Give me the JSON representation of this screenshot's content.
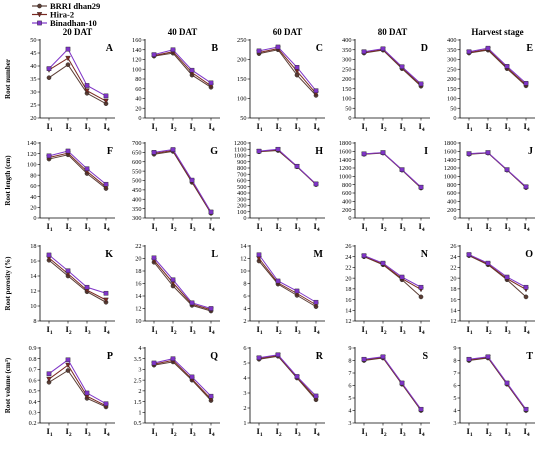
{
  "figure": {
    "column_headers": [
      "20 DAT",
      "40 DAT",
      "60 DAT",
      "80 DAT",
      "Harvest stage"
    ],
    "row_ylabels": [
      "Root number",
      "Root length (cm)",
      "Root porosity (%)",
      "Root volume (cm³)"
    ],
    "legend": [
      {
        "label": "BRRI dhan29",
        "color": "#5a3d34",
        "marker": "circle"
      },
      {
        "label": "Hira-2",
        "color": "#7a2a22",
        "marker": "triangle-down"
      },
      {
        "label": "Binadhan-10",
        "color": "#7f35c7",
        "marker": "square"
      }
    ]
  },
  "chart_data": [
    {
      "type": "line",
      "panel": "A",
      "column": "20 DAT",
      "ylabel": "Root number",
      "categories": [
        "I1",
        "I2",
        "I3",
        "I4"
      ],
      "yticks": [
        20,
        25,
        30,
        35,
        40,
        45,
        50
      ],
      "ylim": [
        20,
        50
      ],
      "series": [
        {
          "name": "BRRI dhan29",
          "values": [
            35.5,
            40.5,
            29.5,
            25.5
          ]
        },
        {
          "name": "Hira-2",
          "values": [
            38.5,
            43,
            30.5,
            26.5
          ]
        },
        {
          "name": "Binadhan-10",
          "values": [
            39,
            46.5,
            32.5,
            28.5
          ]
        }
      ]
    },
    {
      "type": "line",
      "panel": "B",
      "column": "40 DAT",
      "ylabel": "Root number",
      "categories": [
        "I1",
        "I2",
        "I3",
        "I4"
      ],
      "yticks": [
        0,
        20,
        40,
        60,
        80,
        100,
        120,
        140,
        160
      ],
      "ylim": [
        0,
        160
      ],
      "series": [
        {
          "name": "BRRI dhan29",
          "values": [
            127,
            133,
            88,
            63
          ]
        },
        {
          "name": "Hira-2",
          "values": [
            128,
            136,
            93,
            66
          ]
        },
        {
          "name": "Binadhan-10",
          "values": [
            130,
            140,
            98,
            72
          ]
        }
      ]
    },
    {
      "type": "line",
      "panel": "C",
      "column": "60 DAT",
      "ylabel": "Root number",
      "categories": [
        "I1",
        "I2",
        "I3",
        "I4"
      ],
      "yticks": [
        50,
        100,
        150,
        200,
        250
      ],
      "ylim": [
        50,
        250
      ],
      "series": [
        {
          "name": "BRRI dhan29",
          "values": [
            215,
            225,
            160,
            108
          ]
        },
        {
          "name": "Hira-2",
          "values": [
            218,
            228,
            170,
            113
          ]
        },
        {
          "name": "Binadhan-10",
          "values": [
            222,
            232,
            180,
            120
          ]
        }
      ]
    },
    {
      "type": "line",
      "panel": "D",
      "column": "80 DAT",
      "ylabel": "Root number",
      "categories": [
        "I1",
        "I2",
        "I3",
        "I4"
      ],
      "yticks": [
        0,
        50,
        100,
        150,
        200,
        250,
        300,
        350,
        400
      ],
      "ylim": [
        0,
        400
      ],
      "series": [
        {
          "name": "BRRI dhan29",
          "values": [
            333,
            348,
            253,
            163
          ]
        },
        {
          "name": "Hira-2",
          "values": [
            336,
            351,
            258,
            168
          ]
        },
        {
          "name": "Binadhan-10",
          "values": [
            340,
            355,
            263,
            175
          ]
        }
      ]
    },
    {
      "type": "line",
      "panel": "E",
      "column": "Harvest stage",
      "ylabel": "Root number",
      "categories": [
        "I1",
        "I2",
        "I3",
        "I4"
      ],
      "yticks": [
        0,
        50,
        100,
        150,
        200,
        250,
        300,
        350,
        400
      ],
      "ylim": [
        0,
        400
      ],
      "series": [
        {
          "name": "BRRI dhan29",
          "values": [
            333,
            348,
            253,
            165
          ]
        },
        {
          "name": "Hira-2",
          "values": [
            336,
            352,
            258,
            170
          ]
        },
        {
          "name": "Binadhan-10",
          "values": [
            340,
            358,
            265,
            178
          ]
        }
      ]
    },
    {
      "type": "line",
      "panel": "F",
      "column": "20 DAT",
      "ylabel": "Root length (cm)",
      "categories": [
        "I1",
        "I2",
        "I3",
        "I4"
      ],
      "yticks": [
        0,
        20,
        40,
        60,
        80,
        100,
        120,
        140
      ],
      "ylim": [
        0,
        140
      ],
      "series": [
        {
          "name": "BRRI dhan29",
          "values": [
            110,
            118,
            83,
            55
          ]
        },
        {
          "name": "Hira-2",
          "values": [
            113,
            121,
            87,
            58
          ]
        },
        {
          "name": "Binadhan-10",
          "values": [
            116,
            125,
            92,
            63
          ]
        }
      ]
    },
    {
      "type": "line",
      "panel": "G",
      "column": "40 DAT",
      "ylabel": "Root length (cm)",
      "categories": [
        "I1",
        "I2",
        "I3",
        "I4"
      ],
      "yticks": [
        300,
        350,
        400,
        450,
        500,
        550,
        600,
        650,
        700
      ],
      "ylim": [
        300,
        700
      ],
      "series": [
        {
          "name": "BRRI dhan29",
          "values": [
            640,
            655,
            490,
            325
          ]
        },
        {
          "name": "Hira-2",
          "values": [
            645,
            660,
            495,
            328
          ]
        },
        {
          "name": "Binadhan-10",
          "values": [
            650,
            665,
            502,
            332
          ]
        }
      ]
    },
    {
      "type": "line",
      "panel": "H",
      "column": "60 DAT",
      "ylabel": "Root length (cm)",
      "categories": [
        "I1",
        "I2",
        "I3",
        "I4"
      ],
      "yticks": [
        0,
        100,
        200,
        300,
        400,
        500,
        600,
        700,
        800,
        900,
        1000,
        1100,
        1200
      ],
      "ylim": [
        0,
        1200
      ],
      "series": [
        {
          "name": "BRRI dhan29",
          "values": [
            1060,
            1080,
            820,
            535
          ]
        },
        {
          "name": "Hira-2",
          "values": [
            1065,
            1090,
            825,
            540
          ]
        },
        {
          "name": "Binadhan-10",
          "values": [
            1070,
            1100,
            828,
            545
          ]
        }
      ]
    },
    {
      "type": "line",
      "panel": "I",
      "column": "80 DAT",
      "ylabel": "Root length (cm)",
      "categories": [
        "I1",
        "I2",
        "I3",
        "I4"
      ],
      "yticks": [
        0,
        200,
        400,
        600,
        800,
        1000,
        1200,
        1400,
        1600,
        1800
      ],
      "ylim": [
        0,
        1800
      ],
      "series": [
        {
          "name": "BRRI dhan29",
          "values": [
            1530,
            1560,
            1150,
            720
          ]
        },
        {
          "name": "Hira-2",
          "values": [
            1535,
            1565,
            1155,
            730
          ]
        },
        {
          "name": "Binadhan-10",
          "values": [
            1540,
            1570,
            1160,
            740
          ]
        }
      ]
    },
    {
      "type": "line",
      "panel": "J",
      "column": "Harvest stage",
      "ylabel": "Root length (cm)",
      "categories": [
        "I1",
        "I2",
        "I3",
        "I4"
      ],
      "yticks": [
        0,
        200,
        400,
        600,
        800,
        1000,
        1200,
        1400,
        1600,
        1800
      ],
      "ylim": [
        0,
        1800
      ],
      "series": [
        {
          "name": "BRRI dhan29",
          "values": [
            1530,
            1560,
            1150,
            730
          ]
        },
        {
          "name": "Hira-2",
          "values": [
            1540,
            1565,
            1155,
            740
          ]
        },
        {
          "name": "Binadhan-10",
          "values": [
            1545,
            1570,
            1160,
            750
          ]
        }
      ]
    },
    {
      "type": "line",
      "panel": "K",
      "column": "20 DAT",
      "ylabel": "Root porosity (%)",
      "categories": [
        "I1",
        "I2",
        "I3",
        "I4"
      ],
      "yticks": [
        8,
        10,
        12,
        14,
        16,
        18
      ],
      "ylim": [
        8,
        18
      ],
      "series": [
        {
          "name": "BRRI dhan29",
          "values": [
            16.1,
            14.0,
            11.9,
            10.5
          ]
        },
        {
          "name": "Hira-2",
          "values": [
            16.4,
            14.3,
            12.1,
            10.8
          ]
        },
        {
          "name": "Binadhan-10",
          "values": [
            16.8,
            14.7,
            12.5,
            11.7
          ]
        }
      ]
    },
    {
      "type": "line",
      "panel": "L",
      "column": "40 DAT",
      "ylabel": "Root porosity (%)",
      "categories": [
        "I1",
        "I2",
        "I3",
        "I4"
      ],
      "yticks": [
        10,
        12,
        14,
        16,
        18,
        20,
        22
      ],
      "ylim": [
        10,
        22
      ],
      "series": [
        {
          "name": "BRRI dhan29",
          "values": [
            19.4,
            15.6,
            12.5,
            11.6
          ]
        },
        {
          "name": "Hira-2",
          "values": [
            19.7,
            16.1,
            12.7,
            11.8
          ]
        },
        {
          "name": "Binadhan-10",
          "values": [
            20.1,
            16.6,
            12.9,
            12.0
          ]
        }
      ]
    },
    {
      "type": "line",
      "panel": "M",
      "column": "60 DAT",
      "ylabel": "Root porosity (%)",
      "categories": [
        "I1",
        "I2",
        "I3",
        "I4"
      ],
      "yticks": [
        2,
        4,
        6,
        8,
        10,
        12,
        14
      ],
      "ylim": [
        2,
        14
      ],
      "series": [
        {
          "name": "BRRI dhan29",
          "values": [
            11.6,
            7.9,
            6.1,
            4.3
          ]
        },
        {
          "name": "Hira-2",
          "values": [
            12.0,
            8.1,
            6.4,
            4.6
          ]
        },
        {
          "name": "Binadhan-10",
          "values": [
            12.6,
            8.4,
            6.8,
            5.0
          ]
        }
      ]
    },
    {
      "type": "line",
      "panel": "N",
      "column": "80 DAT",
      "ylabel": "Root porosity (%)",
      "categories": [
        "I1",
        "I2",
        "I3",
        "I4"
      ],
      "yticks": [
        12,
        14,
        16,
        18,
        20,
        22,
        24,
        26
      ],
      "ylim": [
        12,
        26
      ],
      "series": [
        {
          "name": "BRRI dhan29",
          "values": [
            24.0,
            22.5,
            19.7,
            16.5
          ]
        },
        {
          "name": "Hira-2",
          "values": [
            24.1,
            22.6,
            19.9,
            17.9
          ]
        },
        {
          "name": "Binadhan-10",
          "values": [
            24.2,
            22.8,
            20.2,
            18.3
          ]
        }
      ]
    },
    {
      "type": "line",
      "panel": "O",
      "column": "Harvest stage",
      "ylabel": "Root porosity (%)",
      "categories": [
        "I1",
        "I2",
        "I3",
        "I4"
      ],
      "yticks": [
        12,
        14,
        16,
        18,
        20,
        22,
        24,
        26
      ],
      "ylim": [
        12,
        26
      ],
      "series": [
        {
          "name": "BRRI dhan29",
          "values": [
            24.2,
            22.5,
            19.7,
            16.5
          ]
        },
        {
          "name": "Hira-2",
          "values": [
            24.3,
            22.6,
            19.9,
            17.9
          ]
        },
        {
          "name": "Binadhan-10",
          "values": [
            24.4,
            22.8,
            20.2,
            18.3
          ]
        }
      ]
    },
    {
      "type": "line",
      "panel": "P",
      "column": "20 DAT",
      "ylabel": "Root volume (cm³)",
      "categories": [
        "I1",
        "I2",
        "I3",
        "I4"
      ],
      "yticks": [
        0.2,
        0.3,
        0.4,
        0.5,
        0.6,
        0.7,
        0.8,
        0.9
      ],
      "ylim": [
        0.2,
        0.9
      ],
      "series": [
        {
          "name": "BRRI dhan29",
          "values": [
            0.58,
            0.69,
            0.43,
            0.35
          ]
        },
        {
          "name": "Hira-2",
          "values": [
            0.61,
            0.74,
            0.45,
            0.36
          ]
        },
        {
          "name": "Binadhan-10",
          "values": [
            0.66,
            0.79,
            0.48,
            0.38
          ]
        }
      ]
    },
    {
      "type": "line",
      "panel": "Q",
      "column": "40 DAT",
      "ylabel": "Root volume (cm³)",
      "categories": [
        "I1",
        "I2",
        "I3",
        "I4"
      ],
      "yticks": [
        0.5,
        1.0,
        1.5,
        2.0,
        2.5,
        3.0,
        3.5,
        4.0
      ],
      "ylim": [
        0.5,
        4.0
      ],
      "series": [
        {
          "name": "BRRI dhan29",
          "values": [
            3.2,
            3.35,
            2.5,
            1.55
          ]
        },
        {
          "name": "Hira-2",
          "values": [
            3.25,
            3.42,
            2.55,
            1.62
          ]
        },
        {
          "name": "Binadhan-10",
          "values": [
            3.3,
            3.5,
            2.65,
            1.75
          ]
        }
      ]
    },
    {
      "type": "line",
      "panel": "R",
      "column": "60 DAT",
      "ylabel": "Root volume (cm³)",
      "categories": [
        "I1",
        "I2",
        "I3",
        "I4"
      ],
      "yticks": [
        1,
        2,
        3,
        4,
        5,
        6
      ],
      "ylim": [
        1,
        6
      ],
      "series": [
        {
          "name": "BRRI dhan29",
          "values": [
            5.25,
            5.45,
            4.0,
            2.55
          ]
        },
        {
          "name": "Hira-2",
          "values": [
            5.3,
            5.5,
            4.05,
            2.65
          ]
        },
        {
          "name": "Binadhan-10",
          "values": [
            5.35,
            5.55,
            4.1,
            2.8
          ]
        }
      ]
    },
    {
      "type": "line",
      "panel": "S",
      "column": "80 DAT",
      "ylabel": "Root volume (cm³)",
      "categories": [
        "I1",
        "I2",
        "I3",
        "I4"
      ],
      "yticks": [
        3,
        4,
        5,
        6,
        7,
        8,
        9
      ],
      "ylim": [
        3,
        9
      ],
      "series": [
        {
          "name": "BRRI dhan29",
          "values": [
            8.0,
            8.2,
            6.1,
            4.0
          ]
        },
        {
          "name": "Hira-2",
          "values": [
            8.05,
            8.25,
            6.15,
            4.05
          ]
        },
        {
          "name": "Binadhan-10",
          "values": [
            8.1,
            8.3,
            6.2,
            4.1
          ]
        }
      ]
    },
    {
      "type": "line",
      "panel": "T",
      "column": "Harvest stage",
      "ylabel": "Root volume (cm³)",
      "categories": [
        "I1",
        "I2",
        "I3",
        "I4"
      ],
      "yticks": [
        3,
        4,
        5,
        6,
        7,
        8,
        9
      ],
      "ylim": [
        3,
        9
      ],
      "series": [
        {
          "name": "BRRI dhan29",
          "values": [
            8.0,
            8.2,
            6.1,
            4.0
          ]
        },
        {
          "name": "Hira-2",
          "values": [
            8.05,
            8.25,
            6.15,
            4.05
          ]
        },
        {
          "name": "Binadhan-10",
          "values": [
            8.1,
            8.3,
            6.2,
            4.1
          ]
        }
      ]
    }
  ]
}
